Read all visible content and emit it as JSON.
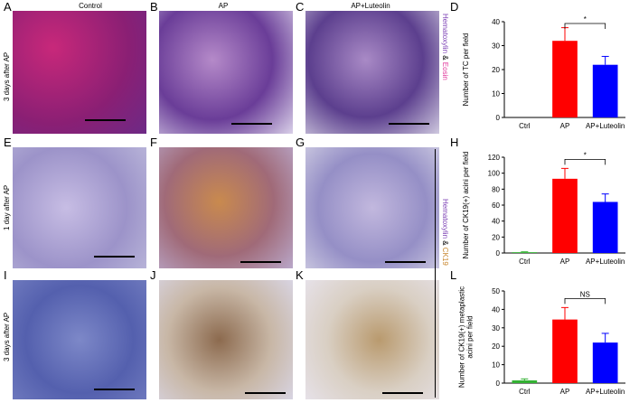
{
  "panel_letters": [
    "A",
    "B",
    "C",
    "D",
    "E",
    "F",
    "G",
    "H",
    "I",
    "J",
    "K",
    "L"
  ],
  "column_headers": [
    "Control",
    "AP",
    "AP+Luteolin"
  ],
  "row_labels": [
    "3 days after AP",
    "1 day after AP",
    "3 days after AP"
  ],
  "stain_labels": [
    {
      "parts": [
        "Hematoxylin",
        " & ",
        "Eosin"
      ],
      "colors": [
        "#7b3fb4",
        "#000000",
        "#e0359a"
      ]
    },
    {
      "parts": [
        "Hematoxylin",
        " & ",
        "CK19"
      ],
      "colors": [
        "#7b3fb4",
        "#000000",
        "#c8862c"
      ]
    }
  ],
  "colors": {
    "ctrl": "#33b233",
    "ap": "#ff0000",
    "aplut": "#0000ff",
    "he_bg": "#d97fb0",
    "ihc_bg": "#c9cbe6"
  },
  "chart_data": [
    {
      "panel": "D",
      "type": "bar",
      "categories": [
        "Ctrl",
        "AP",
        "AP+Luteolin"
      ],
      "values": [
        0,
        32,
        22
      ],
      "errors": [
        0,
        5.5,
        3.5
      ],
      "ylabel": "Number of TC per field",
      "ylim": [
        0,
        40
      ],
      "yticks": [
        0,
        10,
        20,
        30,
        40
      ],
      "significance": {
        "from": 1,
        "to": 2,
        "label": "*"
      }
    },
    {
      "panel": "H",
      "type": "bar",
      "categories": [
        "Ctrl",
        "AP",
        "AP+Luteolin"
      ],
      "values": [
        1,
        93,
        64
      ],
      "errors": [
        0.5,
        13,
        10
      ],
      "ylabel": "Number of CK19(+) acini per field",
      "ylim": [
        0,
        120
      ],
      "yticks": [
        0,
        20,
        40,
        60,
        80,
        100,
        120
      ],
      "significance": {
        "from": 1,
        "to": 2,
        "label": "*"
      }
    },
    {
      "panel": "L",
      "type": "bar",
      "categories": [
        "Ctrl",
        "AP",
        "AP+Luteolin"
      ],
      "values": [
        1.5,
        34.5,
        22
      ],
      "errors": [
        0.8,
        6.5,
        5
      ],
      "ylabel": "Number of CK19(+) metaplastic acini per field",
      "ylabel_lines": [
        "Number of CK19(+) metaplastic",
        "acini per field"
      ],
      "ylim": [
        0,
        50
      ],
      "yticks": [
        0,
        10,
        20,
        30,
        40,
        50
      ],
      "significance": {
        "from": 1,
        "to": 2,
        "label": "NS"
      }
    }
  ]
}
